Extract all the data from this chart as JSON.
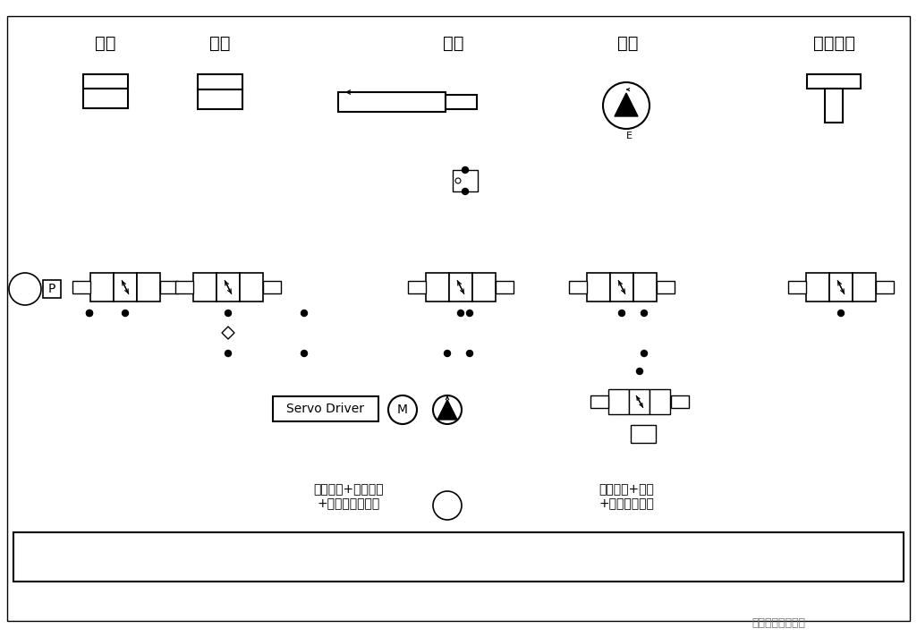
{
  "bg_color": "#ffffff",
  "line_color": "#000000",
  "titles": [
    [
      "锁模",
      118
    ],
    [
      "射移",
      246
    ],
    [
      "射胶",
      507
    ],
    [
      "熔胶",
      702
    ],
    [
      "顶针油缸",
      932
    ]
  ],
  "servo_label": "Servo Driver",
  "label1": "伺服驱动+伺服电机\n+变速驱动叶片泵",
  "label2": "系统卸荷+加载\n+保压特殊回路",
  "watermark": "别易号十佰业机电"
}
